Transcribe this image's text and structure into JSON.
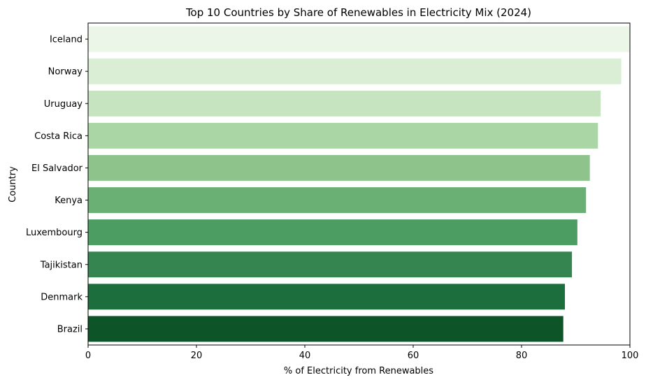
{
  "chart_data": {
    "type": "bar",
    "orientation": "horizontal",
    "title": "Top 10 Countries by Share of Renewables in Electricity Mix (2024)",
    "xlabel": "% of Electricity from Renewables",
    "ylabel": "Country",
    "xlim": [
      0,
      100
    ],
    "xticks": [
      0,
      20,
      40,
      60,
      80,
      100
    ],
    "grid": false,
    "categories": [
      "Iceland",
      "Norway",
      "Uruguay",
      "Costa Rica",
      "El Salvador",
      "Kenya",
      "Luxembourg",
      "Tajikistan",
      "Denmark",
      "Brazil"
    ],
    "values": [
      100,
      98.4,
      94.6,
      94.1,
      92.6,
      91.9,
      90.3,
      89.3,
      88.0,
      87.7
    ],
    "colors": [
      "#ebf6e8",
      "#d9eed4",
      "#c6e4c0",
      "#aad6a5",
      "#8ec48b",
      "#6ab075",
      "#4b9d62",
      "#34854f",
      "#1c6e3d",
      "#0d5429"
    ]
  }
}
